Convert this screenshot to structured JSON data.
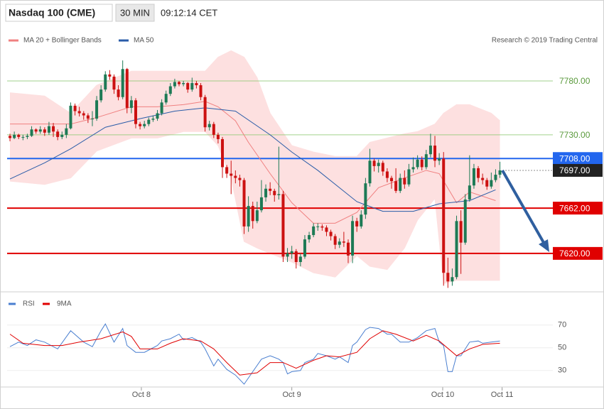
{
  "header": {
    "title": "Nasdaq 100 (CME)",
    "interval": "30 MIN",
    "time": "09:12:14 CET"
  },
  "chart_data": [
    {
      "type": "candlestick",
      "up_color": "#1d7a55",
      "down_color": "#cc1111",
      "xlim": [
        -0.66,
        125.2
      ],
      "xticks": [
        {
          "value": 30.3,
          "label": "Oct 8"
        },
        {
          "value": 65,
          "label": "Oct 9"
        },
        {
          "value": 99.8,
          "label": "Oct 10"
        },
        {
          "value": 113.5,
          "label": "Oct 11"
        }
      ],
      "ylim": [
        7585,
        7832
      ],
      "credit": "Research © 2019 Trading Central",
      "candles": [
        [
          7729,
          7731,
          7724,
          7727
        ],
        [
          7727,
          7733,
          7726,
          7730
        ],
        [
          7730,
          7731,
          7726,
          7728
        ],
        [
          7728,
          7730,
          7725,
          7728
        ],
        [
          7728,
          7731,
          7726,
          7729
        ],
        [
          7729,
          7738,
          7728,
          7735
        ],
        [
          7735,
          7736,
          7731,
          7733
        ],
        [
          7733,
          7738,
          7731,
          7735
        ],
        [
          7735,
          7737,
          7729,
          7732
        ],
        [
          7732,
          7742,
          7730,
          7738
        ],
        [
          7738,
          7741,
          7728,
          7733
        ],
        [
          7733,
          7735,
          7725,
          7728
        ],
        [
          7728,
          7733,
          7726,
          7730
        ],
        [
          7730,
          7740,
          7727,
          7736
        ],
        [
          7736,
          7760,
          7735,
          7757
        ],
        [
          7757,
          7759,
          7748,
          7752
        ],
        [
          7752,
          7756,
          7747,
          7750
        ],
        [
          7750,
          7752,
          7744,
          7748
        ],
        [
          7748,
          7750,
          7741,
          7745
        ],
        [
          7745,
          7752,
          7738,
          7745
        ],
        [
          7745,
          7766,
          7743,
          7762
        ],
        [
          7762,
          7776,
          7760,
          7772
        ],
        [
          7772,
          7789,
          7770,
          7786
        ],
        [
          7786,
          7790,
          7781,
          7784
        ],
        [
          7784,
          7786,
          7768,
          7772
        ],
        [
          7772,
          7776,
          7762,
          7765
        ],
        [
          7765,
          7799,
          7763,
          7791
        ],
        [
          7791,
          7792,
          7750,
          7755
        ],
        [
          7755,
          7766,
          7750,
          7762
        ],
        [
          7762,
          7764,
          7736,
          7740
        ],
        [
          7740,
          7742,
          7735,
          7738
        ],
        [
          7738,
          7743,
          7736,
          7740
        ],
        [
          7740,
          7746,
          7738,
          7744
        ],
        [
          7744,
          7748,
          7742,
          7745
        ],
        [
          7745,
          7753,
          7743,
          7750
        ],
        [
          7750,
          7763,
          7748,
          7760
        ],
        [
          7760,
          7771,
          7758,
          7768
        ],
        [
          7768,
          7778,
          7766,
          7775
        ],
        [
          7775,
          7782,
          7773,
          7779
        ],
        [
          7779,
          7780,
          7775,
          7777
        ],
        [
          7777,
          7780,
          7775,
          7778
        ],
        [
          7778,
          7779,
          7769,
          7772
        ],
        [
          7772,
          7783,
          7770,
          7778
        ],
        [
          7778,
          7780,
          7773,
          7776
        ],
        [
          7776,
          7778,
          7762,
          7765
        ],
        [
          7765,
          7767,
          7733,
          7737
        ],
        [
          7737,
          7743,
          7734,
          7740
        ],
        [
          7740,
          7742,
          7727,
          7730
        ],
        [
          7730,
          7732,
          7722,
          7726
        ],
        [
          7726,
          7728,
          7690,
          7700
        ],
        [
          7700,
          7702,
          7690,
          7694
        ],
        [
          7694,
          7706,
          7675,
          7692
        ],
        [
          7692,
          7697,
          7685,
          7690
        ],
        [
          7690,
          7693,
          7682,
          7688
        ],
        [
          7688,
          7690,
          7638,
          7645
        ],
        [
          7645,
          7673,
          7640,
          7664
        ],
        [
          7664,
          7668,
          7643,
          7650
        ],
        [
          7650,
          7668,
          7648,
          7660
        ],
        [
          7660,
          7688,
          7658,
          7672
        ],
        [
          7672,
          7684,
          7668,
          7680
        ],
        [
          7680,
          7686,
          7674,
          7678
        ],
        [
          7678,
          7680,
          7668,
          7674
        ],
        [
          7674,
          7719,
          7670,
          7675
        ],
        [
          7675,
          7678,
          7612,
          7617
        ],
        [
          7617,
          7625,
          7612,
          7620
        ],
        [
          7620,
          7627,
          7615,
          7622
        ],
        [
          7622,
          7624,
          7606,
          7612
        ],
        [
          7612,
          7620,
          7608,
          7617
        ],
        [
          7617,
          7637,
          7615,
          7633
        ],
        [
          7633,
          7640,
          7630,
          7637
        ],
        [
          7637,
          7648,
          7635,
          7645
        ],
        [
          7645,
          7648,
          7641,
          7645
        ],
        [
          7645,
          7647,
          7641,
          7644
        ],
        [
          7644,
          7646,
          7636,
          7640
        ],
        [
          7640,
          7642,
          7632,
          7636
        ],
        [
          7636,
          7638,
          7624,
          7628
        ],
        [
          7628,
          7634,
          7625,
          7631
        ],
        [
          7631,
          7640,
          7626,
          7630
        ],
        [
          7630,
          7633,
          7611,
          7618
        ],
        [
          7618,
          7655,
          7611,
          7650
        ],
        [
          7650,
          7653,
          7640,
          7645
        ],
        [
          7645,
          7660,
          7643,
          7656
        ],
        [
          7656,
          7690,
          7652,
          7685
        ],
        [
          7685,
          7717,
          7682,
          7706
        ],
        [
          7706,
          7708,
          7696,
          7701
        ],
        [
          7701,
          7707,
          7695,
          7704
        ],
        [
          7704,
          7706,
          7692,
          7696
        ],
        [
          7696,
          7699,
          7686,
          7690
        ],
        [
          7690,
          7692,
          7680,
          7687
        ],
        [
          7687,
          7699,
          7676,
          7678
        ],
        [
          7678,
          7694,
          7676,
          7690
        ],
        [
          7690,
          7697,
          7680,
          7684
        ],
        [
          7684,
          7703,
          7682,
          7698
        ],
        [
          7698,
          7709,
          7695,
          7700
        ],
        [
          7700,
          7711,
          7698,
          7707
        ],
        [
          7707,
          7710,
          7697,
          7700
        ],
        [
          7700,
          7716,
          7698,
          7712
        ],
        [
          7712,
          7731,
          7709,
          7720
        ],
        [
          7720,
          7729,
          7700,
          7706
        ],
        [
          7706,
          7713,
          7702,
          7708
        ],
        [
          7708,
          7714,
          7590,
          7602
        ],
        [
          7602,
          7616,
          7588,
          7594
        ],
        [
          7594,
          7606,
          7590,
          7598
        ],
        [
          7598,
          7655,
          7596,
          7650
        ],
        [
          7650,
          7660,
          7601,
          7630
        ],
        [
          7630,
          7675,
          7628,
          7670
        ],
        [
          7670,
          7711,
          7668,
          7683
        ],
        [
          7683,
          7703,
          7680,
          7699
        ],
        [
          7699,
          7701,
          7686,
          7690
        ],
        [
          7690,
          7694,
          7684,
          7688
        ],
        [
          7688,
          7690,
          7679,
          7682
        ],
        [
          7682,
          7695,
          7680,
          7688
        ],
        [
          7688,
          7698,
          7686,
          7693
        ],
        [
          7693,
          7705,
          7690,
          7697
        ]
      ],
      "bands": {
        "color": "#fde0e0",
        "x": [
          0,
          8,
          14,
          20,
          28,
          34,
          40,
          45,
          48,
          51,
          54,
          57,
          60,
          65,
          70,
          75,
          80,
          83,
          87,
          91,
          94,
          98,
          100,
          103,
          106,
          111,
          113
        ],
        "upper": [
          7769,
          7766,
          7750,
          7776,
          7789,
          7789,
          7789,
          7789,
          7802,
          7808,
          7802,
          7783,
          7750,
          7720,
          7714,
          7710,
          7710,
          7723,
          7727,
          7731,
          7733,
          7740,
          7750,
          7758,
          7758,
          7750,
          7743
        ],
        "lower": [
          7687,
          7684,
          7690,
          7715,
          7727,
          7727,
          7733,
          7733,
          7720,
          7690,
          7631,
          7625,
          7620,
          7612,
          7602,
          7598,
          7618,
          7608,
          7605,
          7625,
          7651,
          7671,
          7592,
          7595,
          7595,
          7595,
          7595
        ]
      },
      "series": [
        {
          "name": "MA 20 + Bollinger Bands",
          "color": "#f08080",
          "x": [
            0,
            8,
            14,
            20,
            28,
            34,
            40,
            45,
            48,
            52,
            55,
            60,
            65,
            70,
            75,
            80,
            85,
            91,
            96,
            99,
            103,
            106,
            112
          ],
          "values": [
            7740,
            7740,
            7740,
            7746,
            7756,
            7756,
            7758,
            7761,
            7756,
            7743,
            7723,
            7694,
            7667,
            7648,
            7648,
            7658,
            7681,
            7690,
            7697,
            7694,
            7667,
            7677,
            7669
          ]
        },
        {
          "name": "MA 50",
          "color": "#2a5ca8",
          "x": [
            0,
            8,
            14,
            22,
            30,
            38,
            45,
            52,
            60,
            65,
            71,
            80,
            86,
            93,
            99,
            106,
            112
          ],
          "values": [
            7689,
            7704,
            7717,
            7737,
            7745,
            7752,
            7755,
            7752,
            7730,
            7714,
            7697,
            7668,
            7659,
            7659,
            7666,
            7669,
            7679
          ]
        }
      ],
      "levels": [
        {
          "value": 7780,
          "label": "7780.00",
          "color": "#8cc870",
          "boxed": false,
          "line": "solid"
        },
        {
          "value": 7730,
          "label": "7730.00",
          "color": "#8cc870",
          "boxed": false,
          "line": "solid"
        },
        {
          "value": 7708,
          "label": "7708.00",
          "color": "#2266ee",
          "boxed": true,
          "line": "solid"
        },
        {
          "value": 7697,
          "label": "7697.00",
          "color": "#222222",
          "boxed": true,
          "line": "dotted"
        },
        {
          "value": 7662,
          "label": "7662.00",
          "color": "#e00000",
          "boxed": true,
          "line": "solid"
        },
        {
          "value": 7620,
          "label": "7620.00",
          "color": "#e00000",
          "boxed": true,
          "line": "solid"
        }
      ]
    },
    {
      "type": "line",
      "xlim": [
        -0.66,
        125.2
      ],
      "ylim": [
        18,
        98
      ],
      "yticks": [
        30,
        50,
        70
      ],
      "grid": true,
      "series": [
        {
          "name": "RSI",
          "color": "#4a7fd0",
          "x": [
            0,
            2,
            4,
            6,
            8,
            11,
            14,
            17,
            19,
            21,
            22,
            24,
            26,
            27,
            29,
            31,
            32,
            34,
            35,
            37,
            39,
            40,
            42,
            44,
            45,
            47,
            48,
            50,
            52,
            54,
            56,
            58,
            60,
            62,
            63,
            64,
            65,
            67,
            68,
            70,
            71,
            73,
            75,
            76,
            78,
            79,
            80,
            82,
            83,
            85,
            87,
            88,
            90,
            92,
            94,
            96,
            98,
            99,
            100,
            101,
            102,
            103,
            104,
            105,
            106,
            108,
            109,
            111,
            113
          ],
          "values": [
            51,
            55,
            52,
            57,
            55,
            49,
            65,
            55,
            51,
            65,
            71,
            55,
            67,
            52,
            46,
            46,
            48,
            52,
            56,
            58,
            62,
            57,
            59,
            55,
            49,
            34,
            40,
            31,
            26,
            18,
            29,
            40,
            43,
            40,
            37,
            27,
            29,
            30,
            37,
            40,
            45,
            43,
            40,
            42,
            37,
            52,
            55,
            66,
            68,
            67,
            62,
            62,
            55,
            55,
            59,
            65,
            67,
            55,
            52,
            29,
            29,
            43,
            43,
            49,
            55,
            56,
            54,
            55,
            56
          ]
        },
        {
          "name": "9MA",
          "color": "#e00000",
          "x": [
            0,
            3,
            8,
            12,
            16,
            21,
            26,
            28,
            30,
            34,
            37,
            40,
            44,
            47,
            50,
            53,
            57,
            60,
            63,
            66,
            70,
            73,
            76,
            80,
            83,
            86,
            89,
            93,
            96,
            99,
            103,
            106,
            109,
            113
          ],
          "values": [
            62,
            54,
            52,
            52,
            55,
            58,
            64,
            60,
            49,
            49,
            54,
            58,
            56,
            49,
            37,
            26,
            28,
            37,
            37,
            32,
            39,
            43,
            42,
            46,
            58,
            65,
            62,
            56,
            61,
            56,
            43,
            49,
            53,
            54
          ]
        }
      ]
    }
  ]
}
